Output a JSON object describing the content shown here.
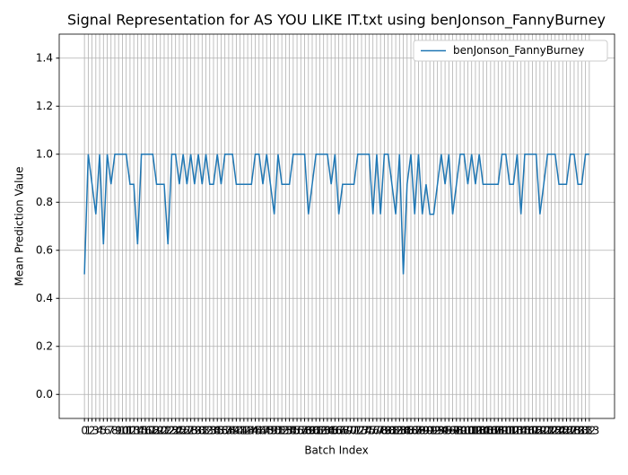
{
  "chart_data": {
    "type": "line",
    "title": "Signal Representation for AS YOU LIKE IT.txt using benJonson_FannyBurney",
    "x_label": "Batch Index",
    "y_label": "Mean Prediction Value",
    "x": [
      0,
      1,
      2,
      3,
      4,
      5,
      6,
      7,
      8,
      9,
      10,
      11,
      12,
      13,
      14,
      15,
      16,
      17,
      18,
      19,
      20,
      21,
      22,
      23,
      24,
      25,
      26,
      27,
      28,
      29,
      30,
      31,
      32,
      33,
      34,
      35,
      36,
      37,
      38,
      39,
      40,
      41,
      42,
      43,
      44,
      45,
      46,
      47,
      48,
      49,
      50,
      51,
      52,
      53,
      54,
      55,
      56,
      57,
      58,
      59,
      60,
      61,
      62,
      63,
      64,
      65,
      66,
      67,
      68,
      69,
      70,
      71,
      72,
      73,
      74,
      75,
      76,
      77,
      78,
      79,
      80,
      81,
      82,
      83,
      84,
      85,
      86,
      87,
      88,
      89,
      90,
      91,
      92,
      93,
      94,
      95,
      96,
      97,
      98,
      99,
      100,
      101,
      102,
      103,
      104,
      105,
      106,
      107,
      108,
      109,
      110,
      111,
      112,
      113,
      114,
      115,
      116,
      117,
      118,
      119,
      120,
      121,
      122,
      123,
      124,
      125,
      126,
      127,
      128,
      129,
      130,
      131,
      132,
      133
    ],
    "series": [
      {
        "name": "benJonson_FannyBurney",
        "color": "#1f77b4",
        "values": [
          0.5,
          1,
          0.875,
          0.75,
          1,
          0.625,
          1,
          0.875,
          1,
          1,
          1,
          1,
          0.875,
          0.875,
          0.625,
          1,
          1,
          1,
          1,
          0.875,
          0.875,
          0.875,
          0.625,
          1,
          1,
          0.875,
          1,
          0.875,
          1,
          0.875,
          1,
          0.875,
          1,
          0.875,
          0.875,
          1,
          0.875,
          1,
          1,
          1,
          0.875,
          0.875,
          0.875,
          0.875,
          0.875,
          1,
          1,
          0.875,
          1,
          0.875,
          0.75,
          1,
          0.875,
          0.875,
          0.875,
          1,
          1,
          1,
          1,
          0.75,
          0.875,
          1,
          1,
          1,
          1,
          0.875,
          1,
          0.75,
          0.875,
          0.875,
          0.875,
          0.875,
          1,
          1,
          1,
          1,
          0.75,
          1,
          0.75,
          1,
          1,
          0.875,
          0.75,
          1,
          0.5,
          0.875,
          1,
          0.75,
          1,
          0.75,
          0.875,
          0.75,
          0.75,
          0.875,
          1,
          0.875,
          1,
          0.75,
          0.875,
          1,
          1,
          0.875,
          1,
          0.875,
          1,
          0.875,
          0.875,
          0.875,
          0.875,
          0.875,
          1,
          1,
          0.875,
          0.875,
          1,
          0.75,
          1,
          1,
          1,
          1,
          0.75,
          0.875,
          1,
          1,
          1,
          0.875,
          0.875,
          0.875,
          1,
          1,
          0.875,
          0.875,
          1,
          1
        ]
      }
    ],
    "xlim": [
      -6.65,
      139.65
    ],
    "xticks": [
      0,
      1,
      2,
      3,
      4,
      5,
      6,
      7,
      8,
      9,
      10,
      11,
      12,
      13,
      14,
      15,
      16,
      17,
      18,
      19,
      20,
      21,
      22,
      23,
      24,
      25,
      26,
      27,
      28,
      29,
      30,
      31,
      32,
      33,
      34,
      35,
      36,
      37,
      38,
      39,
      40,
      41,
      42,
      43,
      44,
      45,
      46,
      47,
      48,
      49,
      50,
      51,
      52,
      53,
      54,
      55,
      56,
      57,
      58,
      59,
      60,
      61,
      62,
      63,
      64,
      65,
      66,
      67,
      68,
      69,
      70,
      71,
      72,
      73,
      74,
      75,
      76,
      77,
      78,
      79,
      80,
      81,
      82,
      83,
      84,
      85,
      86,
      87,
      88,
      89,
      90,
      91,
      92,
      93,
      94,
      95,
      96,
      97,
      98,
      99,
      100,
      101,
      102,
      103,
      104,
      105,
      106,
      107,
      108,
      109,
      110,
      111,
      112,
      113,
      114,
      115,
      116,
      117,
      118,
      119,
      120,
      121,
      122,
      123,
      124,
      125,
      126,
      127,
      128,
      129,
      130,
      131,
      132,
      133
    ],
    "ylim": [
      -0.1,
      1.5
    ],
    "yticks": [
      {
        "value": 0,
        "label": "0.0"
      },
      {
        "value": 0.2,
        "label": "0.2"
      },
      {
        "value": 0.4,
        "label": "0.4"
      },
      {
        "value": 0.6,
        "label": "0.6"
      },
      {
        "value": 0.8,
        "label": "0.8"
      },
      {
        "value": 1,
        "label": "1.0"
      },
      {
        "value": 1.2,
        "label": "1.2"
      },
      {
        "value": 1.4,
        "label": "1.4"
      }
    ],
    "grid": true,
    "legend": "upper right"
  }
}
